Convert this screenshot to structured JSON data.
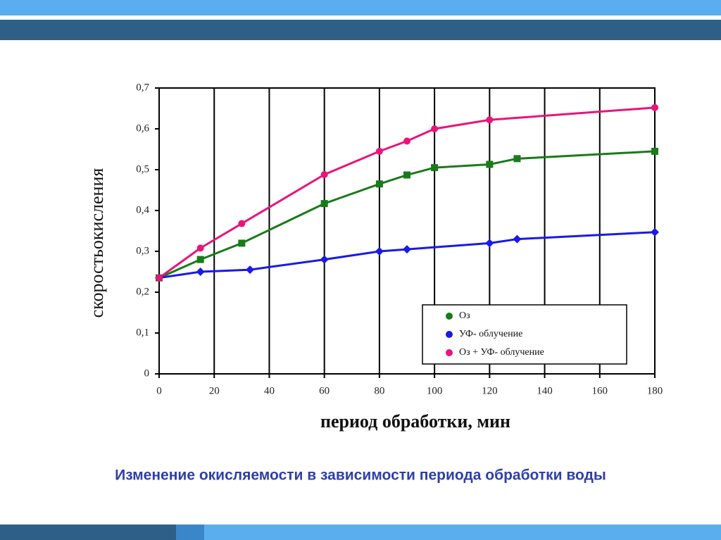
{
  "chart_data": {
    "type": "line",
    "xlabel": "период обработки, мин",
    "ylabel": "скоростьокисления",
    "xlim": [
      0,
      180
    ],
    "xticks": [
      0,
      20,
      40,
      60,
      80,
      100,
      120,
      140,
      160,
      180
    ],
    "ylim": [
      0,
      0.7
    ],
    "yticks": [
      0,
      {
        "value": 0.1,
        "label": "0,1"
      },
      {
        "value": 0.2,
        "label": "0,2"
      },
      {
        "value": 0.3,
        "label": "0,3"
      },
      {
        "value": 0.4,
        "label": "0,4"
      },
      {
        "value": 0.5,
        "label": "0,5"
      },
      {
        "value": 0.6,
        "label": "0,6"
      },
      {
        "value": 0.7,
        "label": "0,7"
      }
    ],
    "grid": true,
    "legend": "lower right",
    "series": [
      {
        "name": "Оз",
        "color": "#1a7a1a",
        "marker": "square",
        "x": [
          0,
          15,
          30,
          60,
          80,
          90,
          100,
          120,
          130,
          180
        ],
        "values": [
          0.235,
          0.28,
          0.32,
          0.417,
          0.465,
          0.487,
          0.505,
          0.513,
          0.527,
          0.545
        ]
      },
      {
        "name": "УФ- облучение",
        "color": "#1a1ae6",
        "marker": "diamond",
        "x": [
          0,
          15,
          33,
          60,
          80,
          90,
          120,
          130,
          180
        ],
        "values": [
          0.235,
          0.25,
          0.255,
          0.28,
          0.3,
          0.305,
          0.32,
          0.33,
          0.347
        ]
      },
      {
        "name": "Оз + УФ- облучение",
        "color": "#e8157a",
        "marker": "circle",
        "x": [
          0,
          15,
          30,
          60,
          80,
          90,
          100,
          120,
          180
        ],
        "values": [
          0.235,
          0.308,
          0.368,
          0.488,
          0.545,
          0.57,
          0.6,
          0.622,
          0.652
        ]
      }
    ]
  },
  "caption": "Изменение окисляемости в зависимости периода обработки  воды"
}
